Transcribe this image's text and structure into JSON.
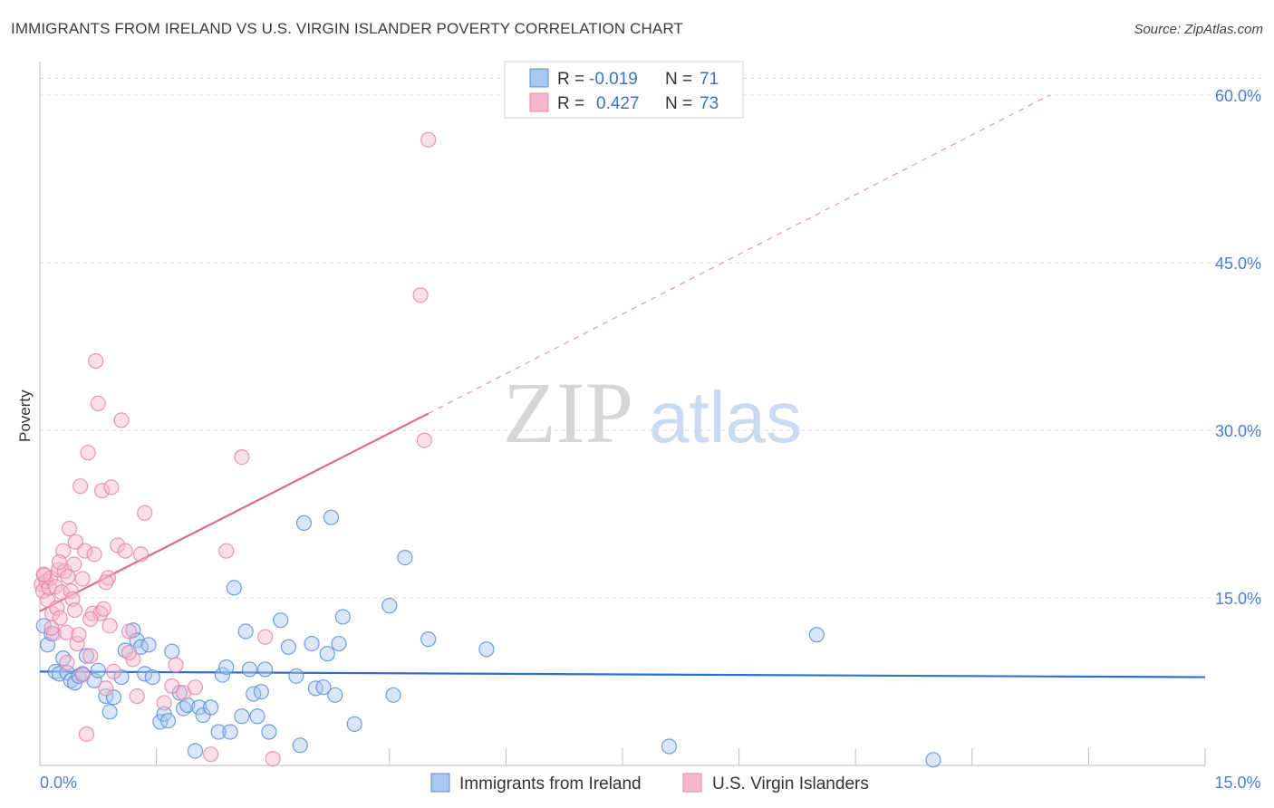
{
  "title": "IMMIGRANTS FROM IRELAND VS U.S. VIRGIN ISLANDER POVERTY CORRELATION CHART",
  "source": "Source: ZipAtlas.com",
  "watermark": {
    "zip": "ZIP",
    "atlas": "atlas"
  },
  "colors": {
    "blue_fill": "#a9c8f0",
    "blue_stroke": "#5b8fd8",
    "blue_line": "#2e6fce",
    "pink_fill": "#f6b9cc",
    "pink_stroke": "#e486a6",
    "pink_line": "#e06990",
    "tick_text": "#4a7fd0",
    "grid": "#d9d9d9"
  },
  "legend": {
    "rows": [
      {
        "r_label": "R =",
        "r_value": "-0.019",
        "n_label": "N =",
        "n_value": "71",
        "series": "blue"
      },
      {
        "r_label": "R =",
        "r_value": "0.427",
        "n_label": "N =",
        "n_value": "73",
        "series": "pink"
      }
    ]
  },
  "chart_data": {
    "type": "scatter",
    "title": "IMMIGRANTS FROM IRELAND VS U.S. VIRGIN ISLANDER POVERTY CORRELATION CHART",
    "xlabel": "",
    "ylabel": "Poverty",
    "xlim": [
      0,
      15
    ],
    "ylim": [
      0,
      63
    ],
    "x_tick_labels": [
      {
        "value": 0,
        "label": "0.0%"
      },
      {
        "value": 15,
        "label": "15.0%"
      }
    ],
    "y_tick_labels": [
      {
        "value": 15,
        "label": "15.0%"
      },
      {
        "value": 30,
        "label": "30.0%"
      },
      {
        "value": 45,
        "label": "45.0%"
      },
      {
        "value": 60,
        "label": "60.0%"
      }
    ],
    "x_minor_ticks": [
      1.5,
      4.5,
      6.0,
      7.5,
      9.0,
      10.5,
      12.0,
      13.5,
      15.0
    ],
    "series": [
      {
        "name": "Immigrants from Ireland",
        "color": "blue",
        "R": -0.019,
        "N": 71,
        "trend": {
          "x": [
            0,
            15
          ],
          "y": [
            8.4,
            7.9
          ],
          "dashed_beyond": null
        },
        "points": [
          [
            0.05,
            12.5
          ],
          [
            0.1,
            10.8
          ],
          [
            0.15,
            11.8
          ],
          [
            0.2,
            8.4
          ],
          [
            0.25,
            8.2
          ],
          [
            0.3,
            9.6
          ],
          [
            0.35,
            8.3
          ],
          [
            0.4,
            7.6
          ],
          [
            0.45,
            7.4
          ],
          [
            0.5,
            8.0
          ],
          [
            0.55,
            8.2
          ],
          [
            0.6,
            9.8
          ],
          [
            0.7,
            7.6
          ],
          [
            0.75,
            8.5
          ],
          [
            0.85,
            6.2
          ],
          [
            0.9,
            4.8
          ],
          [
            0.95,
            6.1
          ],
          [
            1.05,
            7.9
          ],
          [
            1.1,
            10.3
          ],
          [
            1.2,
            12.1
          ],
          [
            1.25,
            11.2
          ],
          [
            1.3,
            10.6
          ],
          [
            1.35,
            8.2
          ],
          [
            1.4,
            10.8
          ],
          [
            1.45,
            7.9
          ],
          [
            1.55,
            3.9
          ],
          [
            1.6,
            4.6
          ],
          [
            1.65,
            4.0
          ],
          [
            1.7,
            10.2
          ],
          [
            1.8,
            6.5
          ],
          [
            1.85,
            5.1
          ],
          [
            1.9,
            5.4
          ],
          [
            2.0,
            1.3
          ],
          [
            2.05,
            5.2
          ],
          [
            2.1,
            4.5
          ],
          [
            2.2,
            5.2
          ],
          [
            2.3,
            3.0
          ],
          [
            2.35,
            8.1
          ],
          [
            2.4,
            8.8
          ],
          [
            2.45,
            3.0
          ],
          [
            2.5,
            15.9
          ],
          [
            2.6,
            4.4
          ],
          [
            2.65,
            12.0
          ],
          [
            2.7,
            8.6
          ],
          [
            2.75,
            6.4
          ],
          [
            2.8,
            4.4
          ],
          [
            2.85,
            6.6
          ],
          [
            2.9,
            8.6
          ],
          [
            2.95,
            3.0
          ],
          [
            3.1,
            13.0
          ],
          [
            3.2,
            10.6
          ],
          [
            3.3,
            8.0
          ],
          [
            3.35,
            1.8
          ],
          [
            3.4,
            21.7
          ],
          [
            3.5,
            10.9
          ],
          [
            3.55,
            6.9
          ],
          [
            3.65,
            7.0
          ],
          [
            3.7,
            10.0
          ],
          [
            3.75,
            22.2
          ],
          [
            3.8,
            6.3
          ],
          [
            3.85,
            10.9
          ],
          [
            3.9,
            13.3
          ],
          [
            4.05,
            3.7
          ],
          [
            4.5,
            14.3
          ],
          [
            4.55,
            6.3
          ],
          [
            4.7,
            18.6
          ],
          [
            5.0,
            11.3
          ],
          [
            5.75,
            10.4
          ],
          [
            8.1,
            1.7
          ],
          [
            10.0,
            11.7
          ],
          [
            11.5,
            0.5
          ]
        ]
      },
      {
        "name": "U.S. Virgin Islanders",
        "color": "pink",
        "R": 0.427,
        "N": 73,
        "trend": {
          "x": [
            0,
            5.0
          ],
          "y": [
            13.8,
            31.5
          ],
          "dashed_to": [
            13.0,
            60.0
          ]
        },
        "points": [
          [
            0.02,
            16.2
          ],
          [
            0.04,
            15.6
          ],
          [
            0.06,
            17.0
          ],
          [
            0.08,
            16.5
          ],
          [
            0.1,
            14.8
          ],
          [
            0.12,
            15.9
          ],
          [
            0.14,
            16.8
          ],
          [
            0.16,
            13.6
          ],
          [
            0.18,
            11.8
          ],
          [
            0.2,
            16.0
          ],
          [
            0.22,
            14.1
          ],
          [
            0.24,
            17.5
          ],
          [
            0.26,
            13.2
          ],
          [
            0.28,
            15.5
          ],
          [
            0.3,
            19.2
          ],
          [
            0.32,
            17.4
          ],
          [
            0.34,
            11.9
          ],
          [
            0.36,
            16.9
          ],
          [
            0.38,
            21.2
          ],
          [
            0.4,
            15.6
          ],
          [
            0.42,
            14.9
          ],
          [
            0.44,
            18.0
          ],
          [
            0.46,
            20.0
          ],
          [
            0.48,
            10.9
          ],
          [
            0.5,
            11.7
          ],
          [
            0.52,
            25.0
          ],
          [
            0.55,
            16.7
          ],
          [
            0.58,
            19.2
          ],
          [
            0.6,
            2.8
          ],
          [
            0.62,
            28.0
          ],
          [
            0.65,
            9.8
          ],
          [
            0.68,
            13.6
          ],
          [
            0.7,
            18.9
          ],
          [
            0.72,
            36.2
          ],
          [
            0.75,
            32.4
          ],
          [
            0.78,
            13.6
          ],
          [
            0.8,
            24.6
          ],
          [
            0.82,
            14.0
          ],
          [
            0.85,
            6.9
          ],
          [
            0.88,
            16.8
          ],
          [
            0.9,
            12.5
          ],
          [
            0.92,
            24.9
          ],
          [
            1.0,
            19.7
          ],
          [
            1.05,
            30.9
          ],
          [
            1.1,
            19.2
          ],
          [
            1.15,
            12.0
          ],
          [
            1.2,
            9.5
          ],
          [
            1.25,
            6.2
          ],
          [
            1.3,
            18.9
          ],
          [
            1.35,
            22.6
          ],
          [
            1.6,
            5.6
          ],
          [
            1.7,
            7.1
          ],
          [
            1.75,
            9.0
          ],
          [
            1.85,
            6.5
          ],
          [
            2.0,
            7.0
          ],
          [
            2.2,
            1.0
          ],
          [
            2.4,
            19.2
          ],
          [
            2.6,
            27.6
          ],
          [
            2.9,
            11.5
          ],
          [
            3.0,
            0.6
          ],
          [
            5.0,
            56.0
          ],
          [
            4.9,
            42.1
          ],
          [
            4.95,
            29.1
          ],
          [
            0.15,
            12.3
          ],
          [
            0.25,
            18.2
          ],
          [
            0.35,
            9.2
          ],
          [
            0.45,
            13.9
          ],
          [
            0.55,
            8.1
          ],
          [
            0.65,
            13.1
          ],
          [
            0.85,
            16.4
          ],
          [
            1.15,
            10.1
          ],
          [
            0.95,
            8.4
          ],
          [
            0.05,
            17.1
          ]
        ]
      }
    ]
  },
  "bottom_legend": {
    "items": [
      {
        "label": "Immigrants from Ireland",
        "series": "blue"
      },
      {
        "label": "U.S. Virgin Islanders",
        "series": "pink"
      }
    ]
  }
}
